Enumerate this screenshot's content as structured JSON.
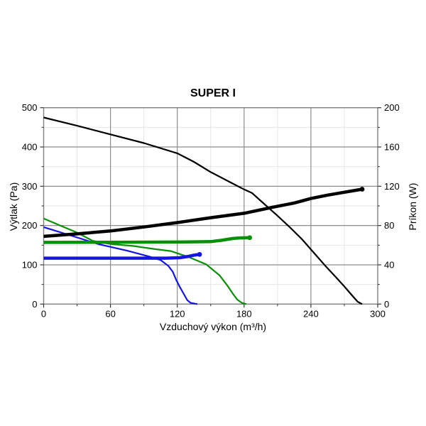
{
  "chart_data": {
    "type": "line",
    "title": "SUPER I",
    "xlabel": "Vzduchový výkon (m³/h)",
    "ylabel_left": "Výtlak (Pa)",
    "ylabel_right": "Príkon (W)",
    "x_range": [
      0,
      300
    ],
    "y_left_range": [
      0,
      500
    ],
    "y_right_range": [
      0,
      200
    ],
    "x_ticks_major": [
      0,
      60,
      120,
      180,
      240,
      300
    ],
    "x_ticks_minor": [
      30,
      90,
      150,
      210,
      270
    ],
    "y_left_ticks_major": [
      0,
      100,
      200,
      300,
      400,
      500
    ],
    "y_left_ticks_minor": [
      50,
      150,
      250,
      350,
      450
    ],
    "y_right_ticks_major": [
      0,
      40,
      80,
      120,
      160,
      200
    ],
    "y_right_ticks_minor": [
      20,
      60,
      100,
      140,
      180
    ],
    "grid": true,
    "legend": false,
    "colors": {
      "black": "#000000",
      "green": "#0a8f0a",
      "blue": "#1515e0",
      "grid_major": "#8c8c8c",
      "grid_minor": "#e6e6e6",
      "border": "#808080"
    },
    "series": [
      {
        "name": "pressure-speed-high",
        "axis": "left",
        "color": "#000000",
        "width": 2.2,
        "end_cap": false,
        "points": [
          [
            0,
            475
          ],
          [
            30,
            454
          ],
          [
            60,
            432
          ],
          [
            90,
            410
          ],
          [
            120,
            384
          ],
          [
            135,
            362
          ],
          [
            150,
            336
          ],
          [
            165,
            314
          ],
          [
            180,
            292
          ],
          [
            187,
            283
          ],
          [
            200,
            250
          ],
          [
            210,
            225
          ],
          [
            222,
            193
          ],
          [
            232,
            165
          ],
          [
            241,
            136
          ],
          [
            254,
            94
          ],
          [
            262,
            70
          ],
          [
            270,
            45
          ],
          [
            277,
            22
          ],
          [
            282,
            6
          ],
          [
            286,
            0
          ]
        ]
      },
      {
        "name": "pressure-speed-medium",
        "axis": "left",
        "color": "#0a8f0a",
        "width": 2.2,
        "end_cap": false,
        "points": [
          [
            0,
            218
          ],
          [
            15,
            200
          ],
          [
            30,
            182
          ],
          [
            44,
            161
          ],
          [
            60,
            153
          ],
          [
            80,
            148
          ],
          [
            100,
            140
          ],
          [
            114,
            135
          ],
          [
            130,
            120
          ],
          [
            146,
            101
          ],
          [
            158,
            73
          ],
          [
            165,
            47
          ],
          [
            170,
            26
          ],
          [
            174,
            11
          ],
          [
            178,
            3
          ],
          [
            182,
            0
          ]
        ]
      },
      {
        "name": "pressure-speed-low",
        "axis": "left",
        "color": "#1515e0",
        "width": 2.2,
        "end_cap": false,
        "points": [
          [
            0,
            196
          ],
          [
            25,
            174
          ],
          [
            50,
            152
          ],
          [
            75,
            136
          ],
          [
            95,
            121
          ],
          [
            105,
            112
          ],
          [
            112,
            97
          ],
          [
            116,
            82
          ],
          [
            119,
            62
          ],
          [
            122,
            45
          ],
          [
            126,
            25
          ],
          [
            129,
            10
          ],
          [
            132,
            3
          ],
          [
            138,
            0
          ]
        ]
      },
      {
        "name": "power-speed-medium",
        "axis": "right",
        "color": "#0a8f0a",
        "width": 4.5,
        "end_cap": true,
        "points": [
          [
            0,
            62.8
          ],
          [
            60,
            63
          ],
          [
            120,
            63.2
          ],
          [
            150,
            63.6
          ],
          [
            160,
            65
          ],
          [
            170,
            66.8
          ],
          [
            176,
            67.4
          ],
          [
            185,
            67.6
          ]
        ]
      },
      {
        "name": "power-speed-low",
        "axis": "right",
        "color": "#1515e0",
        "width": 4.5,
        "end_cap": true,
        "points": [
          [
            0,
            46.8
          ],
          [
            60,
            46.8
          ],
          [
            110,
            46.8
          ],
          [
            122,
            47.2
          ],
          [
            130,
            48.6
          ],
          [
            136,
            50
          ],
          [
            140,
            50.6
          ]
        ]
      },
      {
        "name": "power-speed-high",
        "axis": "right",
        "color": "#000000",
        "width": 4.5,
        "end_cap": true,
        "points": [
          [
            0,
            69
          ],
          [
            30,
            71.5
          ],
          [
            60,
            74.5
          ],
          [
            90,
            78.5
          ],
          [
            120,
            83
          ],
          [
            150,
            88
          ],
          [
            180,
            92.5
          ],
          [
            205,
            98.5
          ],
          [
            225,
            103
          ],
          [
            240,
            107.5
          ],
          [
            255,
            111
          ],
          [
            268,
            113.5
          ],
          [
            278,
            115.5
          ],
          [
            286,
            117
          ]
        ]
      }
    ]
  }
}
